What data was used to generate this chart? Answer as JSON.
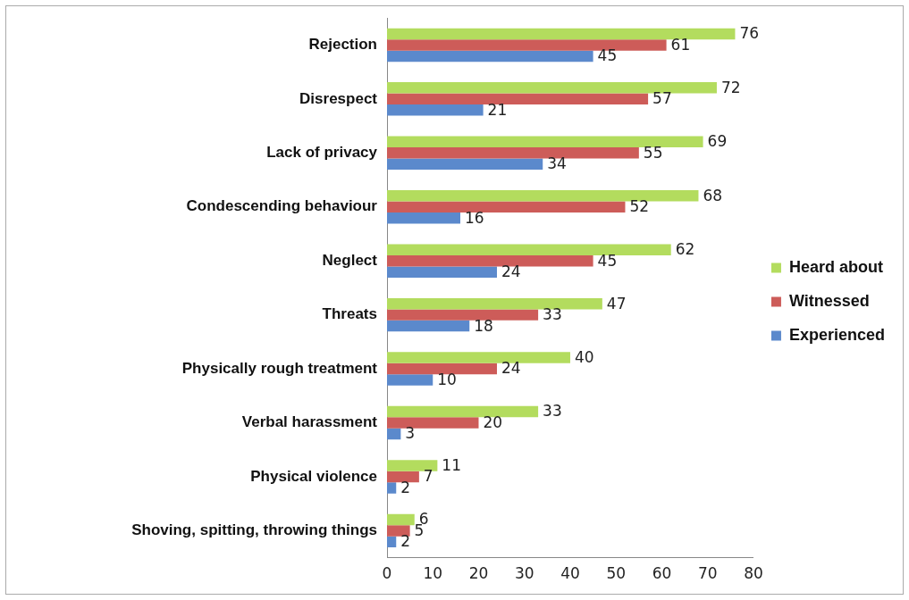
{
  "chart_data": {
    "type": "bar",
    "orientation": "horizontal",
    "categories": [
      "Rejection",
      "Disrespect",
      "Lack of privacy",
      "Condescending behaviour",
      "Neglect",
      "Threats",
      "Physically rough treatment",
      "Verbal harassment",
      "Physical violence",
      "Shoving, spitting, throwing things"
    ],
    "series": [
      {
        "name": "Heard about",
        "color": "#b3dc5e",
        "values": [
          76,
          72,
          69,
          68,
          62,
          47,
          40,
          33,
          11,
          6
        ]
      },
      {
        "name": "Witnessed",
        "color": "#cd5c59",
        "values": [
          61,
          57,
          55,
          52,
          45,
          33,
          24,
          20,
          7,
          5
        ]
      },
      {
        "name": "Experienced",
        "color": "#5b89cc",
        "values": [
          45,
          21,
          34,
          16,
          24,
          18,
          10,
          3,
          2,
          2
        ]
      }
    ],
    "xlim": [
      0,
      80
    ],
    "xticks": [
      0,
      10,
      20,
      30,
      40,
      50,
      60,
      70,
      80
    ],
    "grid": false,
    "legend": "right",
    "data_labels": true
  }
}
